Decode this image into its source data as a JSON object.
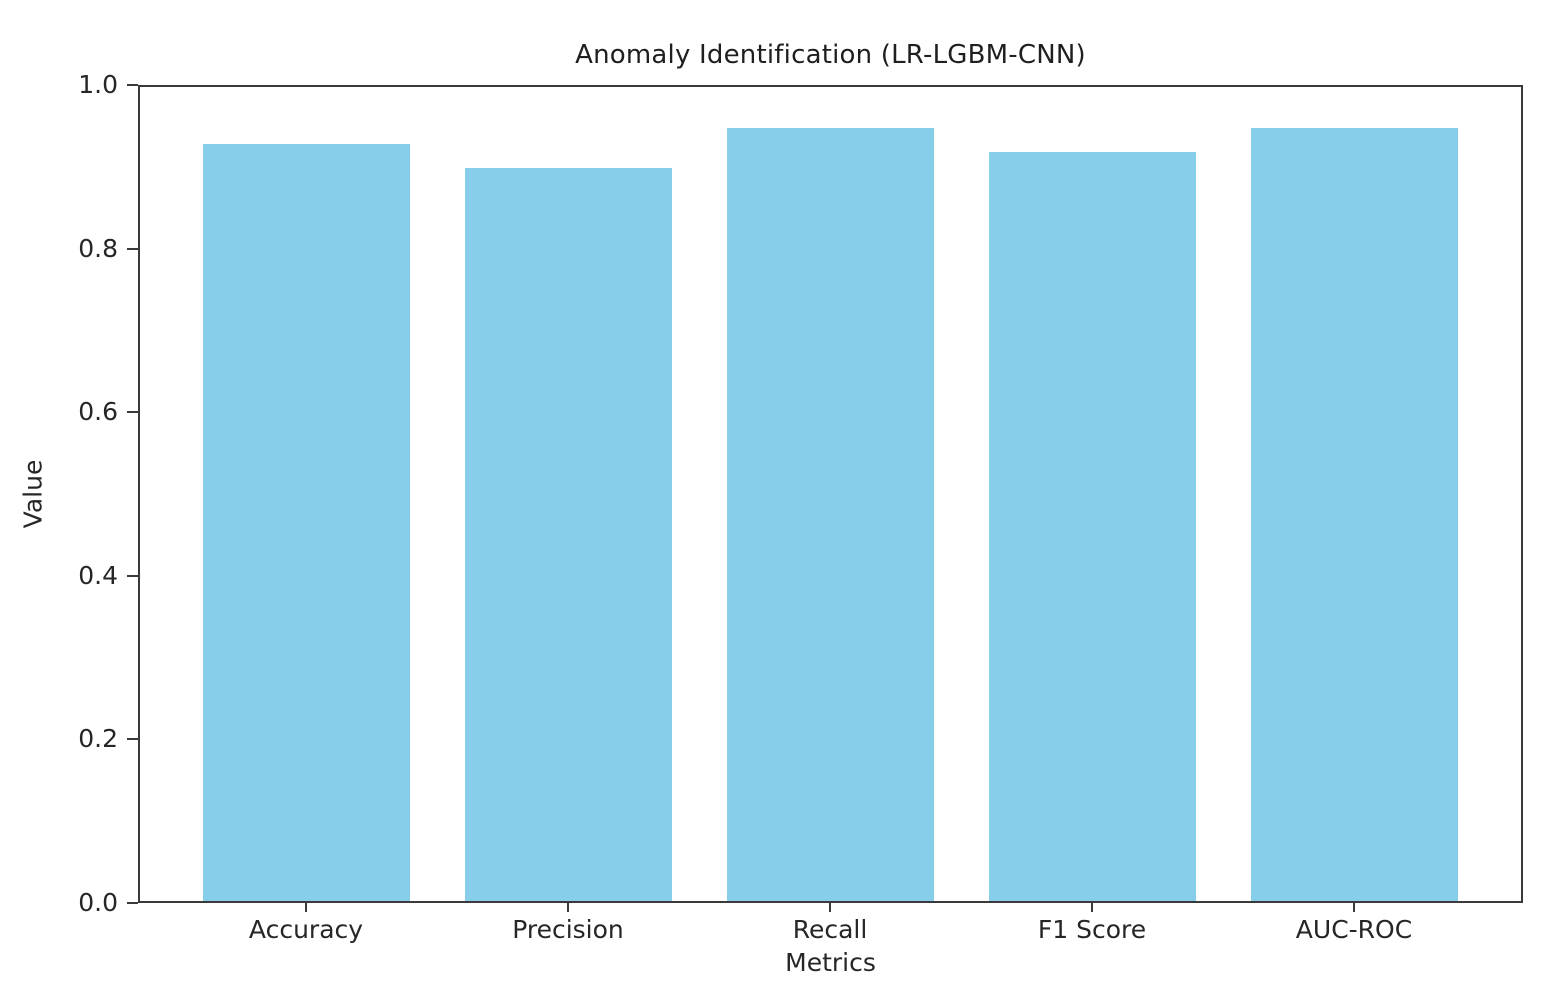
{
  "chart_data": {
    "type": "bar",
    "title": "Anomaly Identification (LR-LGBM-CNN)",
    "xlabel": "Metrics",
    "ylabel": "Value",
    "categories": [
      "Accuracy",
      "Precision",
      "Recall",
      "F1 Score",
      "AUC-ROC"
    ],
    "values": [
      0.93,
      0.9,
      0.95,
      0.92,
      0.95
    ],
    "ylim": [
      0.0,
      1.0
    ],
    "yticks": [
      0.0,
      0.2,
      0.4,
      0.6,
      0.8,
      1.0
    ],
    "bar_color": "#87CEEB",
    "axis_color": "#3a3a3a",
    "text_color": "#262626",
    "background_color": "#ffffff",
    "grid": false,
    "legend_position": "none"
  }
}
